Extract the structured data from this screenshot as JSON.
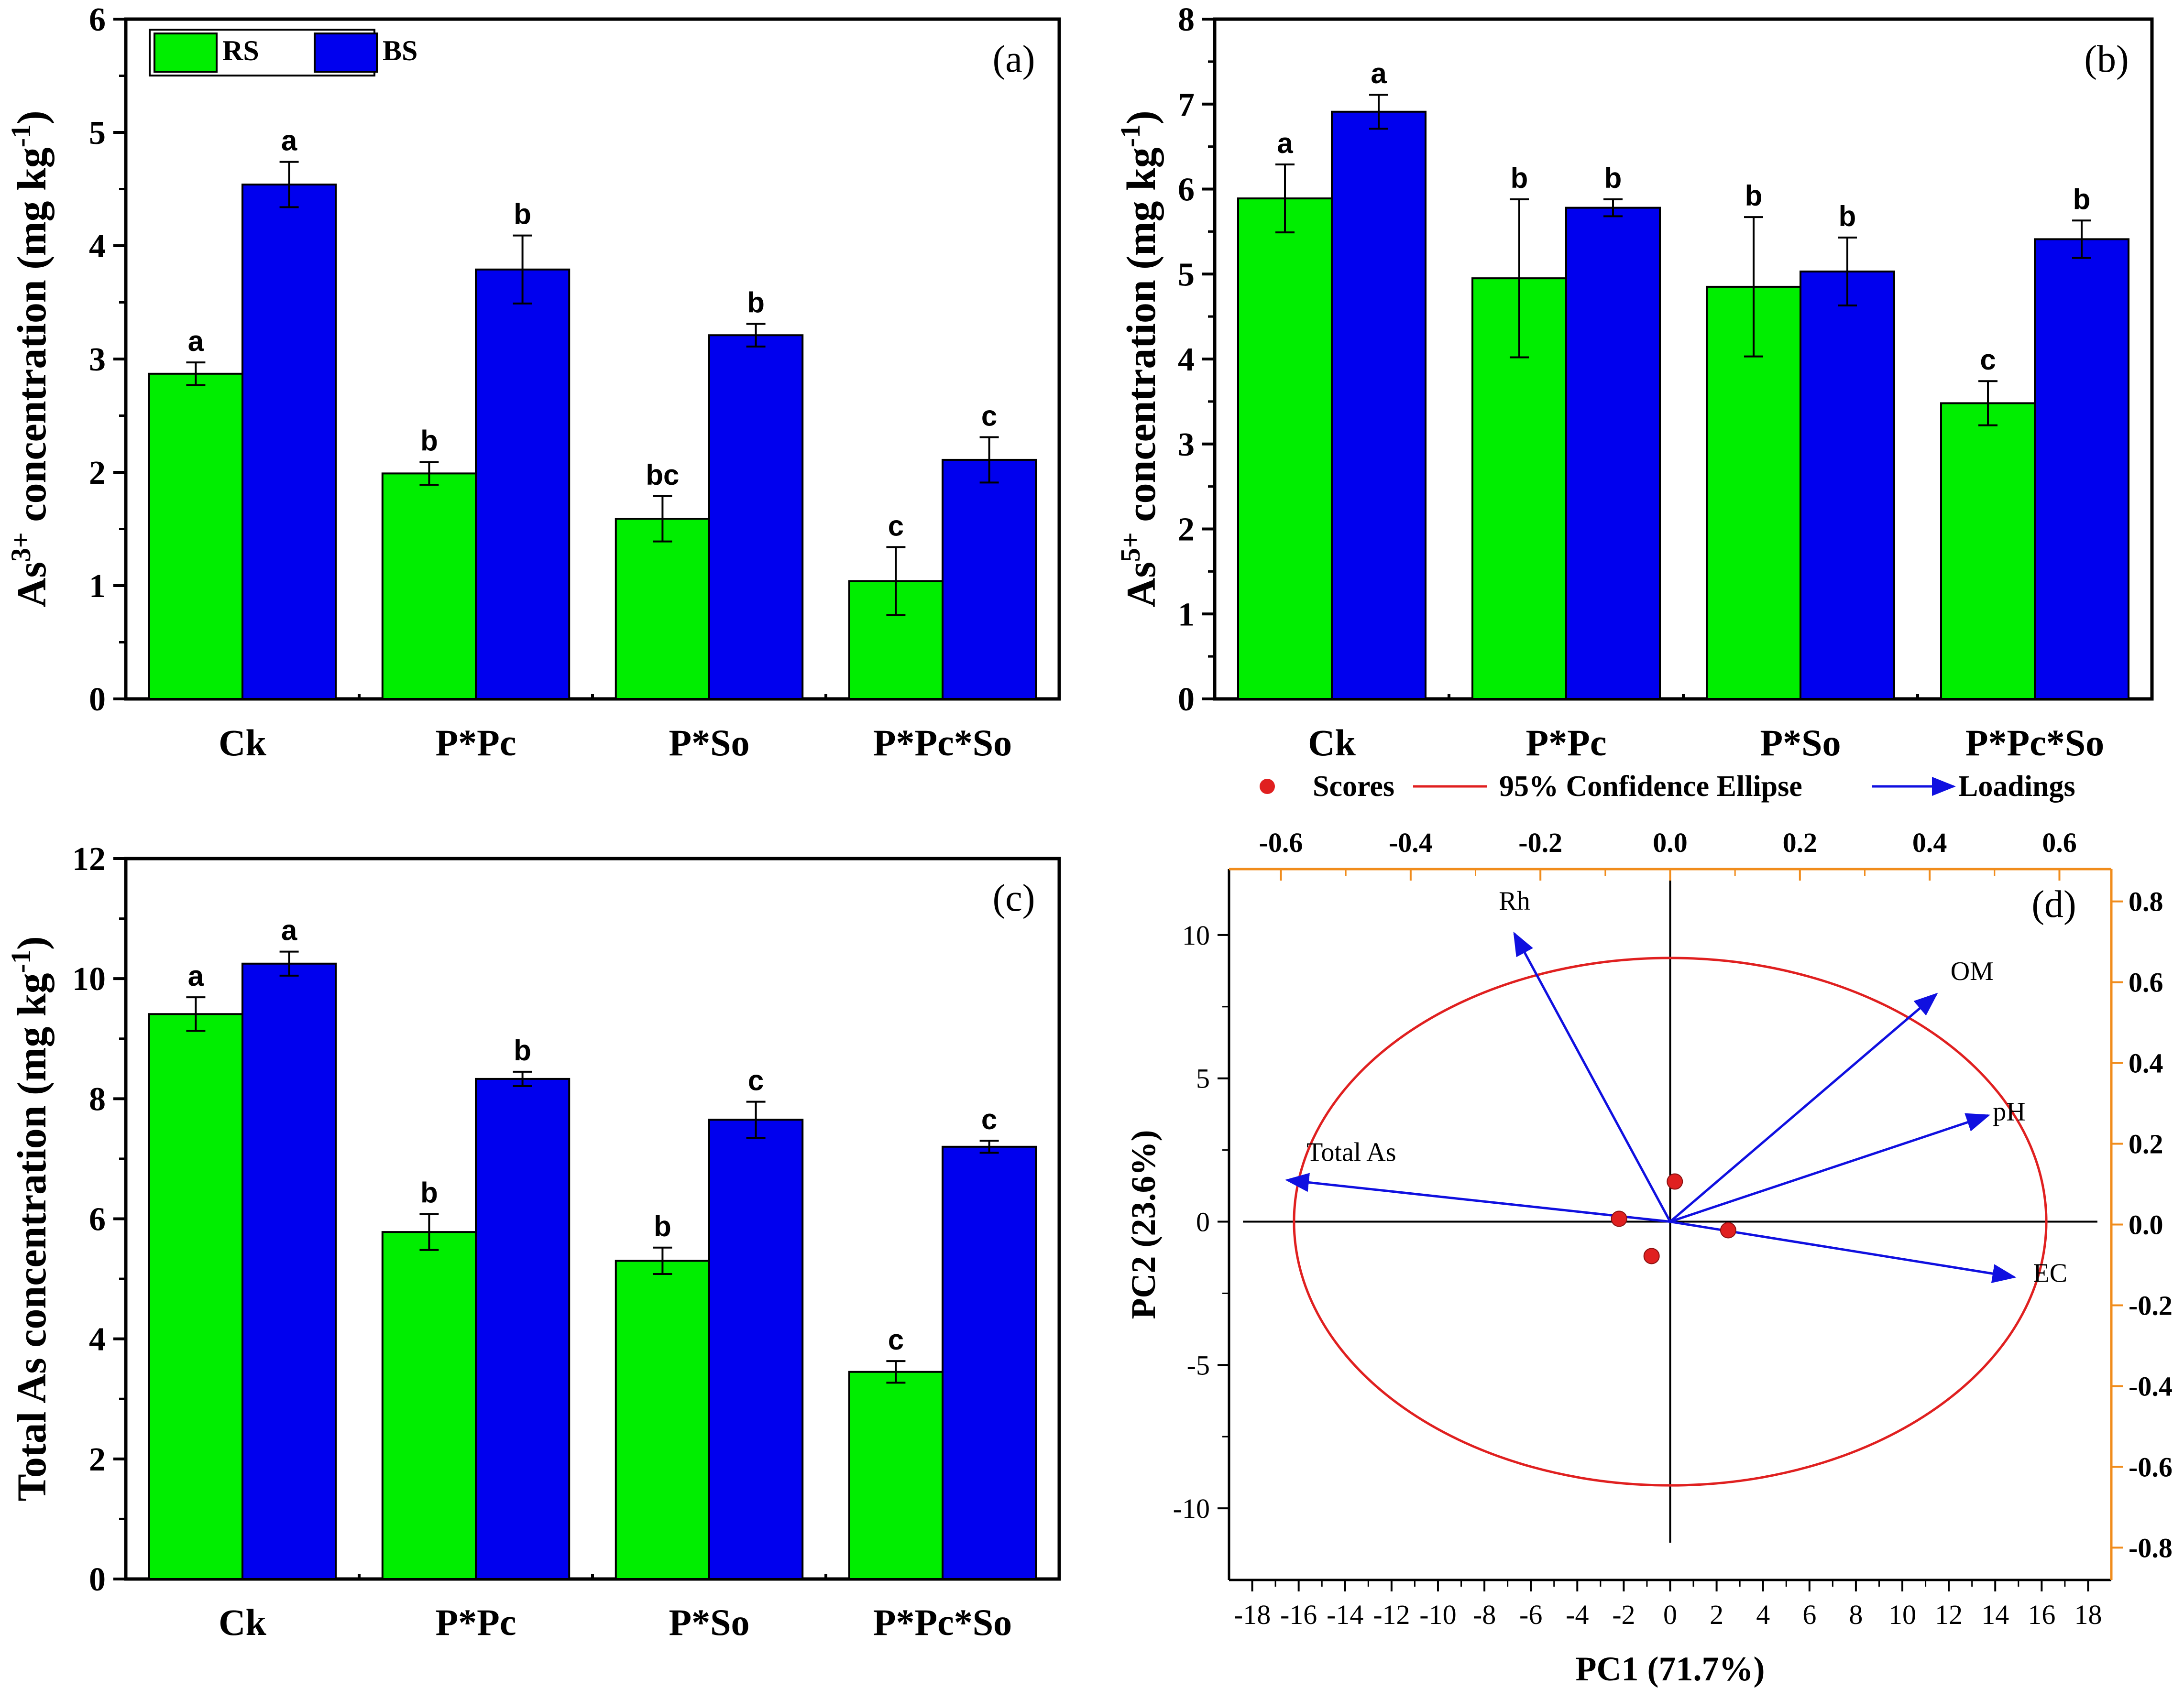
{
  "colors": {
    "rs": "#00ee00",
    "bs": "#0000ee",
    "ellipse": "#e02020",
    "loading": "#1010e0",
    "score": "#e02020",
    "right_axis": "#f08c1c",
    "black": "#000000"
  },
  "bar_panels": [
    {
      "id": "a",
      "letter": "(a)",
      "ylabel_prefix": "As",
      "ylabel_sup": "3+",
      "ylabel_suffix": " concentration (mg kg",
      "ylabel_unit_sup": "-1",
      "ylabel_end": ")",
      "ymax": 6,
      "yticks": [
        "0",
        "1",
        "2",
        "3",
        "4",
        "5",
        "6"
      ],
      "show_legend": true,
      "legend": [
        "RS",
        "BS"
      ]
    },
    {
      "id": "b",
      "letter": "(b)",
      "ylabel_prefix": "As",
      "ylabel_sup": "5+",
      "ylabel_suffix": " concentration (mg kg",
      "ylabel_unit_sup": "-1",
      "ylabel_end": ")",
      "ymax": 8,
      "yticks": [
        "0",
        "1",
        "2",
        "3",
        "4",
        "5",
        "6",
        "7",
        "8"
      ],
      "show_legend": false,
      "legend": []
    },
    {
      "id": "c",
      "letter": "(c)",
      "ylabel_prefix": "Total As concentration (mg kg",
      "ylabel_sup": "",
      "ylabel_suffix": "",
      "ylabel_unit_sup": "-1",
      "ylabel_end": ")",
      "ymax": 12,
      "yticks": [
        "0",
        "2",
        "4",
        "6",
        "8",
        "10",
        "12"
      ],
      "show_legend": false,
      "legend": []
    }
  ],
  "pca_panel": {
    "letter": "(d)",
    "xlabel": "PC1 (71.7%)",
    "ylabel": "PC2 (23.6%)",
    "xticks": [
      "-18",
      "-16",
      "-14",
      "-12",
      "-10",
      "-8",
      "-6",
      "-4",
      "-2",
      "0",
      "2",
      "4",
      "6",
      "8",
      "10",
      "12",
      "14",
      "16",
      "18"
    ],
    "yticks": [
      "-10",
      "-5",
      "0",
      "5",
      "10"
    ],
    "top_ticks": [
      "-0.6",
      "-0.4",
      "-0.2",
      "0.0",
      "0.2",
      "0.4",
      "0.6"
    ],
    "right_ticks": [
      "0.8",
      "0.6",
      "0.4",
      "0.2",
      "0.0",
      "-0.2",
      "-0.4",
      "-0.6",
      "-0.8"
    ],
    "legend": {
      "scores": "Scores",
      "ellipse": "95% Confidence Ellipse",
      "loadings": "Loadings"
    }
  },
  "chart_data": [
    {
      "type": "bar",
      "panel": "(a)",
      "title": "",
      "xlabel": "",
      "ylabel": "As3+ concentration (mg kg-1)",
      "ylim": [
        0,
        6
      ],
      "categories": [
        "Ck",
        "P*Pc",
        "P*So",
        "P*Pc*So"
      ],
      "series": [
        {
          "name": "RS",
          "values": [
            2.87,
            1.99,
            1.59,
            1.04
          ],
          "errors": [
            0.1,
            0.1,
            0.2,
            0.3
          ],
          "sig": [
            "a",
            "b",
            "bc",
            "c"
          ]
        },
        {
          "name": "BS",
          "values": [
            4.54,
            3.79,
            3.21,
            2.11
          ],
          "errors": [
            0.2,
            0.3,
            0.1,
            0.2
          ],
          "sig": [
            "a",
            "b",
            "b",
            "c"
          ]
        }
      ]
    },
    {
      "type": "bar",
      "panel": "(b)",
      "title": "",
      "xlabel": "",
      "ylabel": "As5+ concentration (mg kg-1)",
      "ylim": [
        0,
        8
      ],
      "categories": [
        "Ck",
        "P*Pc",
        "P*So",
        "P*Pc*So"
      ],
      "series": [
        {
          "name": "RS",
          "values": [
            5.89,
            4.95,
            4.85,
            3.48
          ],
          "errors": [
            0.4,
            0.93,
            0.82,
            0.26
          ],
          "sig": [
            "a",
            "b",
            "b",
            "c"
          ]
        },
        {
          "name": "BS",
          "values": [
            6.91,
            5.78,
            5.03,
            5.41
          ],
          "errors": [
            0.2,
            0.1,
            0.4,
            0.22
          ],
          "sig": [
            "a",
            "b",
            "b",
            "b"
          ]
        }
      ]
    },
    {
      "type": "bar",
      "panel": "(c)",
      "title": "",
      "xlabel": "",
      "ylabel": "Total As concentration (mg kg-1)",
      "ylim": [
        0,
        12
      ],
      "categories": [
        "Ck",
        "P*Pc",
        "P*So",
        "P*Pc*So"
      ],
      "series": [
        {
          "name": "RS",
          "values": [
            9.41,
            5.78,
            5.3,
            3.45
          ],
          "errors": [
            0.28,
            0.3,
            0.22,
            0.18
          ],
          "sig": [
            "a",
            "b",
            "b",
            "c"
          ]
        },
        {
          "name": "BS",
          "values": [
            10.25,
            8.33,
            7.65,
            7.2
          ],
          "errors": [
            0.2,
            0.12,
            0.3,
            0.1
          ],
          "sig": [
            "a",
            "b",
            "c",
            "c"
          ]
        }
      ]
    },
    {
      "type": "scatter",
      "panel": "(d)",
      "title": "",
      "xlabel": "PC1 (71.7%)",
      "ylabel": "PC2 (23.6%)",
      "xlim": [
        -19,
        19
      ],
      "ylim": [
        -12.5,
        12.3
      ],
      "x2lim": [
        -0.68,
        0.68
      ],
      "y2lim": [
        -0.88,
        0.88
      ],
      "scores": [
        {
          "x": -2.2,
          "y": 0.1
        },
        {
          "x": 0.2,
          "y": 1.4
        },
        {
          "x": -0.8,
          "y": -1.2
        },
        {
          "x": 2.5,
          "y": -0.3
        }
      ],
      "ellipse": {
        "cx": 0,
        "cy": 0,
        "rx": 16.2,
        "ry": 9.2
      },
      "loadings": [
        {
          "name": "Rh",
          "x": -0.24,
          "y": 0.72
        },
        {
          "name": "OM",
          "x": 0.41,
          "y": 0.57
        },
        {
          "name": "pH",
          "x": 0.49,
          "y": 0.27
        },
        {
          "name": "Total As",
          "x": -0.59,
          "y": 0.11
        },
        {
          "name": "EC",
          "x": 0.53,
          "y": -0.13
        }
      ]
    }
  ]
}
